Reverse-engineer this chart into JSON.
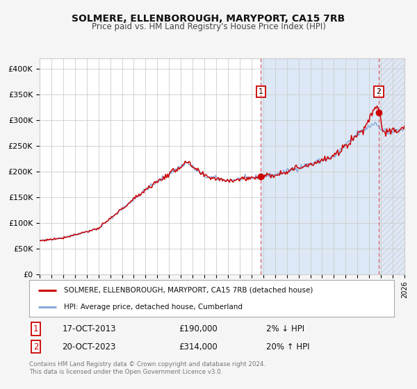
{
  "title": "SOLMERE, ELLENBOROUGH, MARYPORT, CA15 7RB",
  "subtitle": "Price paid vs. HM Land Registry's House Price Index (HPI)",
  "bg_color": "#f5f5f5",
  "plot_bg_color": "#ffffff",
  "shade_color": "#dce8f5",
  "hatch_color": "#cddaec",
  "grid_color": "#cccccc",
  "red_line_color": "#cc0000",
  "blue_line_color": "#88aadd",
  "vline_color": "#dd4444",
  "sale1_date": 2013.8,
  "sale1_price": 190000,
  "sale2_date": 2023.8,
  "sale2_price": 314000,
  "sale1_text": "17-OCT-2013",
  "sale1_pct": "2% ↓ HPI",
  "sale2_text": "20-OCT-2023",
  "sale2_pct": "20% ↑ HPI",
  "ylabel_ticks": [
    "£0",
    "£50K",
    "£100K",
    "£150K",
    "£200K",
    "£250K",
    "£300K",
    "£350K",
    "£400K"
  ],
  "ytick_vals": [
    0,
    50000,
    100000,
    150000,
    200000,
    250000,
    300000,
    350000,
    400000
  ],
  "xmin": 1995,
  "xmax": 2026,
  "ymin": 0,
  "ymax": 420000,
  "legend_line1": "SOLMERE, ELLENBOROUGH, MARYPORT, CA15 7RB (detached house)",
  "legend_line2": "HPI: Average price, detached house, Cumberland",
  "footer": "Contains HM Land Registry data © Crown copyright and database right 2024.\nThis data is licensed under the Open Government Licence v3.0."
}
